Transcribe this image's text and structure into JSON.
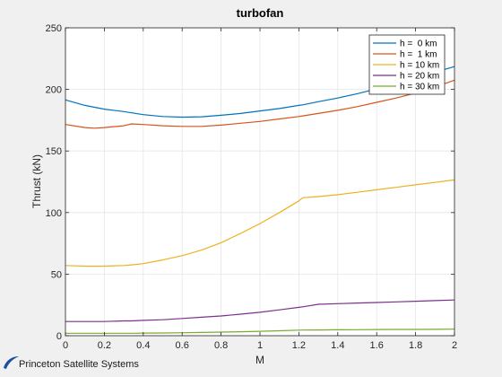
{
  "footer": {
    "brand": "Princeton Satellite Systems",
    "logo_color": "#1f4e9a"
  },
  "chart_data": {
    "type": "line",
    "title": "turbofan",
    "xlabel": "M",
    "ylabel": "Thrust (kN)",
    "xlim": [
      0,
      2
    ],
    "ylim": [
      0,
      250
    ],
    "xticks": [
      0,
      0.2,
      0.4,
      0.6,
      0.8,
      1,
      1.2,
      1.4,
      1.6,
      1.8,
      2
    ],
    "xtick_labels": [
      "0",
      "0.2",
      "0.4",
      "0.6",
      "0.8",
      "1",
      "1.2",
      "1.4",
      "1.6",
      "1.8",
      "2"
    ],
    "yticks": [
      0,
      50,
      100,
      150,
      200,
      250
    ],
    "ytick_labels": [
      "0",
      "50",
      "100",
      "150",
      "200",
      "250"
    ],
    "grid": true,
    "legend_position": "top-right",
    "x": [
      0,
      0.1,
      0.15,
      0.2,
      0.3,
      0.34,
      0.4,
      0.5,
      0.6,
      0.7,
      0.8,
      0.9,
      1.0,
      1.1,
      1.2,
      1.22,
      1.3,
      1.4,
      1.5,
      1.6,
      1.7,
      1.8,
      1.9,
      2.0
    ],
    "series": [
      {
        "name": "h =  0 km",
        "color": "#0072bd",
        "values": [
          191.5,
          187,
          185.5,
          184,
          182,
          181,
          179.5,
          178,
          177.5,
          177.8,
          179,
          180.5,
          182.5,
          184.5,
          187,
          187.5,
          190,
          193,
          196.5,
          200.5,
          205,
          209.5,
          214,
          218.5
        ]
      },
      {
        "name": "h =  1 km",
        "color": "#d95319",
        "values": [
          171.5,
          169,
          168.5,
          169,
          170.5,
          172,
          171.5,
          170.5,
          170,
          170,
          171,
          172.5,
          174,
          176,
          178,
          178.5,
          180.5,
          183,
          186,
          189.5,
          193,
          197,
          202,
          207.5
        ]
      },
      {
        "name": "h = 10 km",
        "color": "#edb120",
        "values": [
          57,
          56.5,
          56.5,
          56.5,
          57,
          57.5,
          58.5,
          61.5,
          65,
          69.5,
          75.5,
          83,
          91,
          100,
          109.5,
          112,
          113,
          114.5,
          116.5,
          118.5,
          120.5,
          122.5,
          124.5,
          126.5
        ]
      },
      {
        "name": "h = 20 km",
        "color": "#7e2f8e",
        "values": [
          11.5,
          11.5,
          11.5,
          11.5,
          12,
          12,
          12.5,
          13,
          14,
          15,
          16,
          17.5,
          19,
          21,
          23,
          23.5,
          25.5,
          26,
          26.5,
          27,
          27.5,
          28,
          28.5,
          29
        ]
      },
      {
        "name": "h = 30 km",
        "color": "#77ac30",
        "values": [
          2,
          2,
          2,
          2,
          2,
          2,
          2.1,
          2.2,
          2.4,
          2.6,
          2.9,
          3.2,
          3.6,
          4.0,
          4.5,
          4.6,
          4.7,
          4.8,
          4.9,
          5.0,
          5.1,
          5.1,
          5.2,
          5.3
        ]
      }
    ]
  }
}
